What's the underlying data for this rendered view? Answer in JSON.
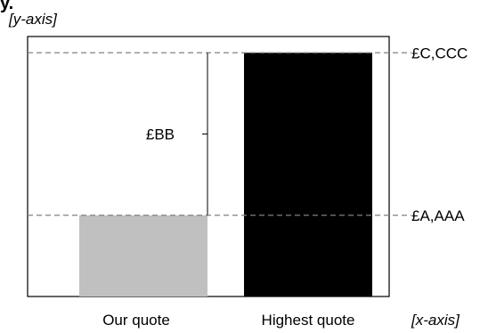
{
  "chart_data": {
    "type": "bar",
    "categories": [
      "Our quote",
      "Highest quote"
    ],
    "series": [
      {
        "values": [
          1,
          3
        ]
      }
    ],
    "ylim": [
      0,
      3.2
    ],
    "ytick_labels": [
      "£A,AAA",
      "£C,CCC"
    ],
    "difference_label": "£BB",
    "xlabel": "[x-axis]",
    "ylabel": "[y-axis]",
    "grid": false,
    "colors": {
      "Our quote": "#c0c0c0",
      "Highest quote": "#000000",
      "guides": "#808080"
    }
  }
}
